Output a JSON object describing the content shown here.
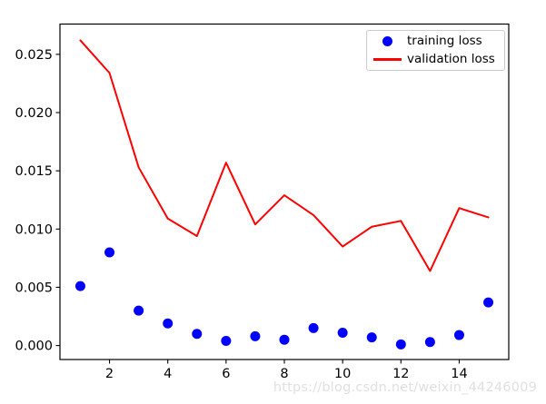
{
  "chart_data": {
    "type": "scatter+line",
    "x": [
      1,
      2,
      3,
      4,
      5,
      6,
      7,
      8,
      9,
      10,
      11,
      12,
      13,
      14,
      15
    ],
    "series": [
      {
        "name": "training loss",
        "type": "scatter",
        "color": "#0000ff",
        "marker": "circle",
        "values": [
          0.0051,
          0.008,
          0.003,
          0.0019,
          0.001,
          0.0004,
          0.0008,
          0.0005,
          0.0015,
          0.0011,
          0.0007,
          0.0001,
          0.0003,
          0.0009,
          0.0037
        ]
      },
      {
        "name": "validation loss",
        "type": "line",
        "color": "#ff0000",
        "values": [
          0.0262,
          0.0234,
          0.0153,
          0.0109,
          0.0094,
          0.0157,
          0.0104,
          0.0129,
          0.0112,
          0.0085,
          0.0102,
          0.0107,
          0.0064,
          0.0118,
          0.011
        ]
      }
    ],
    "xlim": [
      0.3,
      15.7
    ],
    "ylim": [
      -0.0012,
      0.0276
    ],
    "x_ticks": [
      2,
      4,
      6,
      8,
      10,
      12,
      14
    ],
    "y_ticks": [
      0.0,
      0.005,
      0.01,
      0.015,
      0.02,
      0.025
    ],
    "y_tick_decimals": 3,
    "grid": false,
    "legend": {
      "position": "upper right"
    },
    "axis_color": "#000000"
  },
  "watermark": {
    "text": "https://blog.csdn.net/weixin_44246009",
    "color": "#e0e0e0"
  }
}
